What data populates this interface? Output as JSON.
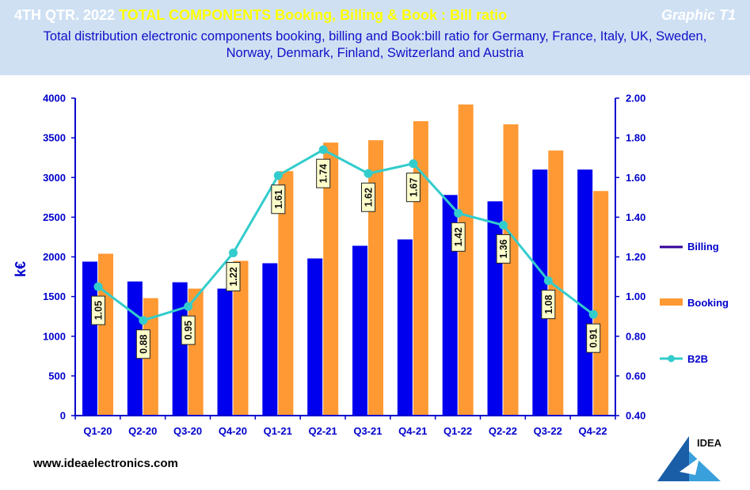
{
  "header": {
    "title_prefix": "4TH QTR. 2022",
    "title_main": "TOTAL COMPONENTS  Booking,  Billing  & Book : Bill ratio",
    "graphic_label": "Graphic T1",
    "subtitle_line1": "Total distribution electronic components booking, billing and Book:bill ratio for Germany,  France, Italy,  UK, Sweden,",
    "subtitle_line2": "Norway,  Denmark,  Finland,  Switzerland  and  Austria"
  },
  "footer": {
    "website": "www.ideaelectronics.com"
  },
  "logo": {
    "text": "IDEA"
  },
  "colors": {
    "header_bg": "#cfe0f3",
    "billing": "#0000ee",
    "booking": "#ff9933",
    "b2b": "#33cccc",
    "axis": "#0000cc",
    "billing_legend": "#330099"
  },
  "chart_data": {
    "type": "bar",
    "categories": [
      "Q1-20",
      "Q2-20",
      "Q3-20",
      "Q4-20",
      "Q1-21",
      "Q2-21",
      "Q3-21",
      "Q4-21",
      "Q1-22",
      "Q2-22",
      "Q3-22",
      "Q4-22"
    ],
    "series": [
      {
        "name": "Billing",
        "type": "bar",
        "axis": "left",
        "values": [
          1940,
          1690,
          1680,
          1600,
          1920,
          1980,
          2140,
          2220,
          2780,
          2700,
          3100,
          3100
        ]
      },
      {
        "name": "Booking",
        "type": "bar",
        "axis": "left",
        "values": [
          2040,
          1480,
          1600,
          1950,
          3080,
          3440,
          3470,
          3710,
          3920,
          3670,
          3340,
          2830
        ]
      },
      {
        "name": "B2B",
        "type": "line",
        "axis": "right",
        "values": [
          1.05,
          0.88,
          0.95,
          1.22,
          1.61,
          1.74,
          1.62,
          1.67,
          1.42,
          1.36,
          1.08,
          0.91
        ]
      }
    ],
    "data_labels": [
      "1.05",
      "0.88",
      "0.95",
      "1.22",
      "1.61",
      "1.74",
      "1.62",
      "1.67",
      "1.42",
      "1.36",
      "1.08",
      "0.91"
    ],
    "ylabel": "k€",
    "ylim": [
      0,
      4000
    ],
    "yticks": [
      "0",
      "500",
      "1000",
      "1500",
      "2000",
      "2500",
      "3000",
      "3500",
      "4000"
    ],
    "y2lim": [
      0.4,
      2.0
    ],
    "y2ticks": [
      "0.40",
      "0.60",
      "0.80",
      "1.00",
      "1.20",
      "1.40",
      "1.60",
      "1.80",
      "2.00"
    ],
    "legend": [
      "Billing",
      "Booking",
      "B2B"
    ],
    "legend_position": "right",
    "grid": false
  }
}
